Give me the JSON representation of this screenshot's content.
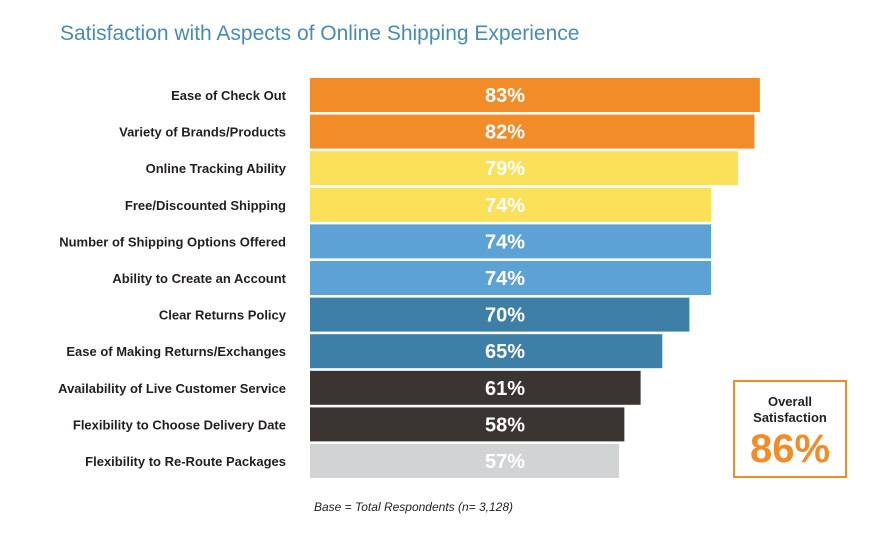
{
  "chart_data": {
    "type": "bar",
    "orientation": "horizontal",
    "title": "Satisfaction with Aspects of Online Shipping Experience",
    "categories": [
      "Ease of Check Out",
      "Variety of Brands/Products",
      "Online Tracking Ability",
      "Free/Discounted Shipping",
      "Number of Shipping Options Offered",
      "Ability to Create an Account",
      "Clear Returns Policy",
      "Ease of Making Returns/Exchanges",
      "Availability of Live Customer Service",
      "Flexibility to Choose Delivery Date",
      "Flexibility to Re-Route Packages"
    ],
    "values": [
      83,
      82,
      79,
      74,
      74,
      74,
      70,
      65,
      61,
      58,
      57
    ],
    "value_labels": [
      "83%",
      "82%",
      "79%",
      "74%",
      "74%",
      "74%",
      "70%",
      "65%",
      "61%",
      "58%",
      "57%"
    ],
    "colors": [
      "#f28c28",
      "#f28c28",
      "#fbe05a",
      "#fbe05a",
      "#5da2d5",
      "#5da2d5",
      "#3d7fa6",
      "#3d7fa6",
      "#3a3533",
      "#3a3533",
      "#d1d3d4"
    ],
    "grid": false,
    "legend": "none"
  },
  "overall": {
    "label": "Overall Satisfaction",
    "value": "86%"
  },
  "footnote": "Base = Total Respondents  (n= 3,128)"
}
